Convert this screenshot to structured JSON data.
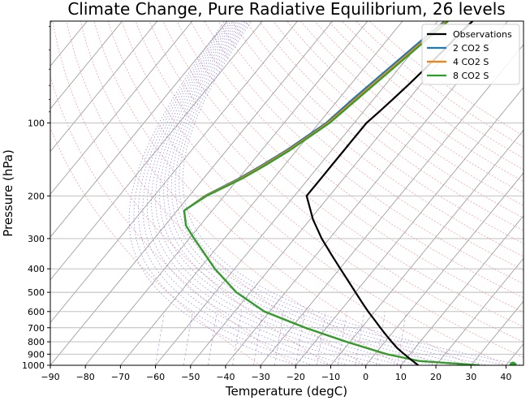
{
  "chart_data": {
    "type": "line",
    "title": "Climate Change, Pure Radiative Equilibrium, 26 levels",
    "xlabel": "Temperature (degC)",
    "ylabel": "Pressure (hPa)",
    "x_scale": "linear",
    "y_scale": "log (inverted, skew-T)",
    "xlim": [
      -90,
      45
    ],
    "ylim": [
      1000,
      38
    ],
    "xticks": [
      "−90",
      "−80",
      "−70",
      "−60",
      "−50",
      "−40",
      "−30",
      "−20",
      "−10",
      "0",
      "10",
      "20",
      "30",
      "40"
    ],
    "yticks": [
      "100",
      "200",
      "300",
      "400",
      "500",
      "600",
      "700",
      "800",
      "900",
      "1000"
    ],
    "grid": true,
    "legend_position": "top-right",
    "series": [
      {
        "name": "Observations",
        "color": "#000000",
        "points": [
          [
            1000,
            15
          ],
          [
            950,
            11.7
          ],
          [
            900,
            8.4
          ],
          [
            850,
            5
          ],
          [
            800,
            1.9
          ],
          [
            750,
            -1.3
          ],
          [
            700,
            -4.6
          ],
          [
            650,
            -8.1
          ],
          [
            600,
            -11.9
          ],
          [
            550,
            -15.8
          ],
          [
            500,
            -20
          ],
          [
            450,
            -24.6
          ],
          [
            400,
            -29.8
          ],
          [
            350,
            -35.6
          ],
          [
            300,
            -42.2
          ],
          [
            250,
            -49.2
          ],
          [
            200,
            -56.5
          ],
          [
            170,
            -56.5
          ],
          [
            150,
            -56.5
          ],
          [
            130,
            -56.5
          ],
          [
            120,
            -56.5
          ],
          [
            100,
            -56.5
          ],
          [
            90,
            -55.5
          ],
          [
            80,
            -54.5
          ],
          [
            70,
            -53.5
          ],
          [
            60,
            -52.5
          ],
          [
            50,
            -51.5
          ],
          [
            40,
            -50.5
          ],
          [
            38,
            -50
          ]
        ]
      },
      {
        "name": "2 CO2 S",
        "color": "#1f77b4",
        "points": [
          [
            1000,
            32.5
          ],
          [
            960,
            14.2
          ],
          [
            900,
            3.4
          ],
          [
            800,
            -11
          ],
          [
            700,
            -26
          ],
          [
            600,
            -41.5
          ],
          [
            500,
            -54
          ],
          [
            400,
            -65.6
          ],
          [
            300,
            -78.6
          ],
          [
            265,
            -84
          ],
          [
            230,
            -88
          ],
          [
            200,
            -85.5
          ],
          [
            170,
            -80
          ],
          [
            150,
            -76.5
          ],
          [
            130,
            -73
          ],
          [
            110,
            -69.8
          ],
          [
            100,
            -68
          ],
          [
            80,
            -66
          ],
          [
            60,
            -63
          ],
          [
            45,
            -60
          ],
          [
            38,
            -58
          ]
        ]
      },
      {
        "name": "4 CO2 S",
        "color": "#ff7f0e",
        "points": [
          [
            1000,
            32.5
          ],
          [
            960,
            14.2
          ],
          [
            900,
            3.4
          ],
          [
            800,
            -11
          ],
          [
            700,
            -26
          ],
          [
            600,
            -41.5
          ],
          [
            500,
            -54
          ],
          [
            400,
            -65.6
          ],
          [
            300,
            -78.6
          ],
          [
            265,
            -84
          ],
          [
            230,
            -88
          ],
          [
            200,
            -85.3
          ],
          [
            170,
            -79.5
          ],
          [
            150,
            -76
          ],
          [
            130,
            -72.5
          ],
          [
            110,
            -69.2
          ],
          [
            100,
            -67.5
          ],
          [
            80,
            -65.2
          ],
          [
            60,
            -62.2
          ],
          [
            45,
            -59.2
          ],
          [
            38,
            -57.5
          ]
        ]
      },
      {
        "name": "8 CO2 S",
        "color": "#2ca02c",
        "points": [
          [
            1000,
            32.5
          ],
          [
            960,
            14.2
          ],
          [
            900,
            3.4
          ],
          [
            800,
            -11
          ],
          [
            700,
            -26
          ],
          [
            600,
            -41.5
          ],
          [
            500,
            -54
          ],
          [
            400,
            -65.6
          ],
          [
            300,
            -78.6
          ],
          [
            265,
            -84
          ],
          [
            230,
            -88
          ],
          [
            200,
            -85
          ],
          [
            170,
            -79
          ],
          [
            150,
            -75.5
          ],
          [
            130,
            -72
          ],
          [
            110,
            -68.8
          ],
          [
            100,
            -67
          ],
          [
            80,
            -64.7
          ],
          [
            60,
            -61.7
          ],
          [
            45,
            -58.7
          ],
          [
            38,
            -57
          ]
        ]
      }
    ],
    "markers": [
      {
        "series": "8 CO2 S",
        "pressure": 1000,
        "temperature": 42,
        "color": "#2ca02c"
      }
    ],
    "background_lines": [
      {
        "kind": "isotherms",
        "color": "#888888"
      },
      {
        "kind": "dry adiabats",
        "color": "#f4a3a3"
      },
      {
        "kind": "moist adiabats",
        "color": "#6f6fe6"
      },
      {
        "kind": "mixing ratio lines",
        "color": "#b48ad8"
      }
    ]
  }
}
